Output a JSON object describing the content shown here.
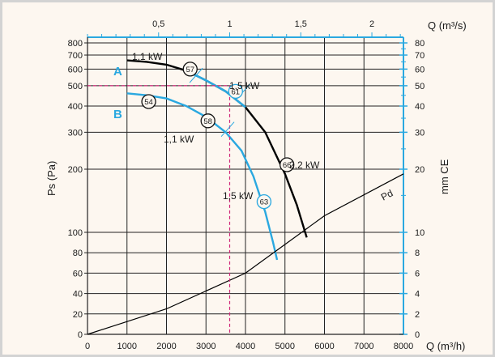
{
  "chart_data": {
    "type": "line",
    "x_axis_bottom": {
      "label": "Q (m³/h)",
      "range": [
        0,
        8000
      ],
      "ticks": [
        "0",
        "1000",
        "2000",
        "3000",
        "4000",
        "5000",
        "6000",
        "7000",
        "8000"
      ]
    },
    "x_axis_top": {
      "label": "Q (m³/s)",
      "range": [
        0,
        2.222
      ],
      "ticks": [
        "0,5",
        "1",
        "1,5",
        "2"
      ]
    },
    "y_axis_left": {
      "label": "Ps  (Pa)",
      "scale": "log",
      "ticks": [
        "0",
        "20",
        "40",
        "60",
        "80",
        "100",
        "200",
        "300",
        "400",
        "500",
        "600",
        "700",
        "800"
      ]
    },
    "y_axis_right": {
      "label": "mm CE",
      "ticks": [
        "0",
        "2",
        "4",
        "6",
        "8",
        "10",
        "20",
        "30",
        "40",
        "50",
        "60",
        "70",
        "80"
      ]
    },
    "series": [
      {
        "name": "A",
        "color": "#000000",
        "points": [
          [
            1000,
            660
          ],
          [
            1500,
            650
          ],
          [
            2000,
            630
          ],
          [
            2500,
            590
          ],
          [
            3000,
            530
          ],
          [
            3500,
            470
          ],
          [
            4000,
            395
          ],
          [
            4500,
            300
          ],
          [
            5000,
            190
          ],
          [
            5300,
            135
          ],
          [
            5550,
            95
          ]
        ]
      },
      {
        "name": "B",
        "color": "#2aa8e0",
        "points": [
          [
            1000,
            460
          ],
          [
            1500,
            450
          ],
          [
            2000,
            435
          ],
          [
            2500,
            400
          ],
          [
            3000,
            355
          ],
          [
            3500,
            300
          ],
          [
            3900,
            245
          ],
          [
            4200,
            185
          ],
          [
            4500,
            125
          ],
          [
            4700,
            90
          ],
          [
            4800,
            73
          ]
        ]
      },
      {
        "name": "Pd",
        "color": "#000000",
        "points": [
          [
            0,
            0
          ],
          [
            2000,
            25
          ],
          [
            4000,
            60
          ],
          [
            6000,
            120
          ],
          [
            8000,
            190
          ]
        ]
      }
    ],
    "labels": {
      "curve_a": "A",
      "curve_b": "B",
      "pd": "Pd",
      "power_a1": "1,1 kW",
      "power_a2": "1,5 kW",
      "power_a3": "2,2 kW",
      "power_b1": "1,1 kW",
      "power_b2": "1,5 kW"
    },
    "efficiency_markers": [
      "57",
      "61",
      "66",
      "54",
      "58",
      "63"
    ],
    "operating_point": {
      "q": 3600,
      "ps": 500
    }
  }
}
